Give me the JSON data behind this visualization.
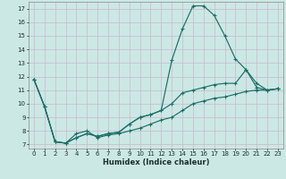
{
  "xlabel": "Humidex (Indice chaleur)",
  "bg_color": "#cce8e4",
  "grid_color": "#c8b8cc",
  "line_color": "#1a7068",
  "xlim": [
    -0.5,
    23.5
  ],
  "ylim": [
    6.7,
    17.5
  ],
  "xticks": [
    0,
    1,
    2,
    3,
    4,
    5,
    6,
    7,
    8,
    9,
    10,
    11,
    12,
    13,
    14,
    15,
    16,
    17,
    18,
    19,
    20,
    21,
    22,
    23
  ],
  "yticks": [
    7,
    8,
    9,
    10,
    11,
    12,
    13,
    14,
    15,
    16,
    17
  ],
  "series": [
    {
      "x": [
        0,
        1,
        2,
        3,
        4,
        5,
        6,
        7,
        8,
        9,
        10,
        11,
        12,
        13,
        14,
        15,
        16,
        17,
        18,
        19,
        20,
        21,
        22,
        23
      ],
      "y": [
        11.8,
        9.8,
        7.2,
        7.1,
        7.8,
        8.0,
        7.5,
        7.7,
        7.8,
        8.0,
        8.2,
        8.5,
        8.8,
        9.0,
        9.5,
        10.0,
        10.2,
        10.4,
        10.5,
        10.7,
        10.9,
        11.0,
        11.0,
        11.1
      ]
    },
    {
      "x": [
        0,
        1,
        2,
        3,
        4,
        5,
        6,
        7,
        8,
        9,
        10,
        11,
        12,
        13,
        14,
        15,
        16,
        17,
        18,
        19,
        20,
        21,
        22,
        23
      ],
      "y": [
        11.8,
        9.8,
        7.2,
        7.1,
        7.5,
        7.8,
        7.6,
        7.8,
        7.9,
        8.5,
        9.0,
        9.2,
        9.5,
        10.0,
        10.8,
        11.0,
        11.2,
        11.4,
        11.5,
        11.5,
        12.5,
        11.2,
        11.0,
        11.1
      ]
    },
    {
      "x": [
        0,
        1,
        2,
        3,
        4,
        5,
        6,
        7,
        8,
        9,
        10,
        11,
        12,
        13,
        14,
        15,
        16,
        17,
        18,
        19,
        20,
        21,
        22,
        23
      ],
      "y": [
        11.8,
        9.8,
        7.2,
        7.1,
        7.5,
        7.8,
        7.6,
        7.8,
        7.9,
        8.5,
        9.0,
        9.2,
        9.5,
        13.2,
        15.5,
        17.2,
        17.2,
        16.5,
        15.0,
        13.3,
        12.5,
        11.5,
        11.0,
        11.1
      ]
    }
  ]
}
